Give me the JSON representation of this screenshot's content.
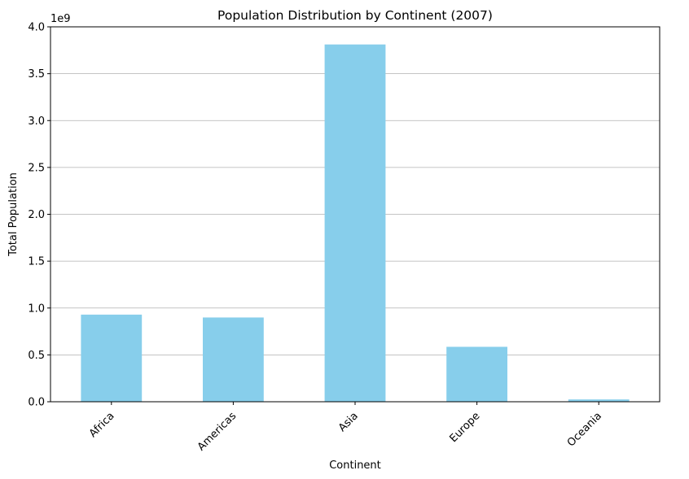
{
  "chart_data": {
    "type": "bar",
    "title": "Population Distribution by Continent (2007)",
    "xlabel": "Continent",
    "ylabel": "Total Population",
    "y_offset_label": "1e9",
    "y_scale": 1000000000,
    "categories": [
      "Africa",
      "Americas",
      "Asia",
      "Europe",
      "Oceania"
    ],
    "values": [
      929539692,
      898871184,
      3811953827,
      586098529,
      24549947
    ],
    "ylim": [
      0,
      4000000000
    ],
    "yticks": [
      0,
      500000000,
      1000000000,
      1500000000,
      2000000000,
      2500000000,
      3000000000,
      3500000000,
      4000000000
    ],
    "ytick_labels": [
      "0.0",
      "0.5",
      "1.0",
      "1.5",
      "2.0",
      "2.5",
      "3.0",
      "3.5",
      "4.0"
    ],
    "grid": "horizontal",
    "bar_color": "#87CEEB",
    "xtick_rotation_deg": 45
  }
}
